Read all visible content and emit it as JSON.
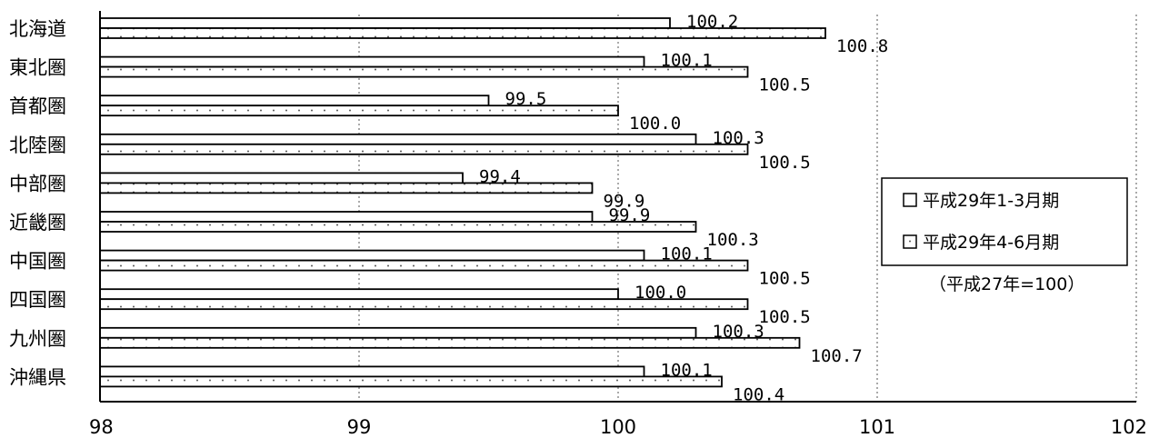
{
  "chart_data": {
    "type": "bar",
    "orientation": "horizontal",
    "categories": [
      "北海道",
      "東北圏",
      "首都圏",
      "北陸圏",
      "中部圏",
      "近畿圏",
      "中国圏",
      "四国圏",
      "九州圏",
      "沖縄県"
    ],
    "series": [
      {
        "name": "平成29年1-3月期",
        "values": [
          100.2,
          100.1,
          99.5,
          100.3,
          99.4,
          99.9,
          100.1,
          100.0,
          100.3,
          100.1
        ],
        "labels": [
          "100.2",
          "100.1",
          "99.5",
          "100.3",
          "99.4",
          "99.9",
          "100.1",
          "100.0",
          "100.3",
          "100.1"
        ],
        "fill": "#ffffff"
      },
      {
        "name": "平成29年4-6月期",
        "values": [
          100.8,
          100.5,
          100.0,
          100.5,
          99.9,
          100.3,
          100.5,
          100.5,
          100.7,
          100.4
        ],
        "labels": [
          "100.8",
          "100.5",
          "100.0",
          "100.5",
          "99.9",
          "100.3",
          "100.5",
          "100.5",
          "100.7",
          "100.4"
        ],
        "fill": "dotted"
      }
    ],
    "xlim": [
      98,
      102
    ],
    "xticks": [
      "98",
      "99",
      "100",
      "101",
      "102"
    ],
    "grid": "vertical dotted",
    "legend": {
      "placement": "right",
      "note": "（平成27年=100）"
    },
    "title": "",
    "xlabel": "",
    "ylabel": "",
    "colors": {
      "bar_stroke": "#000000",
      "dot": "#555555",
      "grid": "#555555"
    }
  }
}
